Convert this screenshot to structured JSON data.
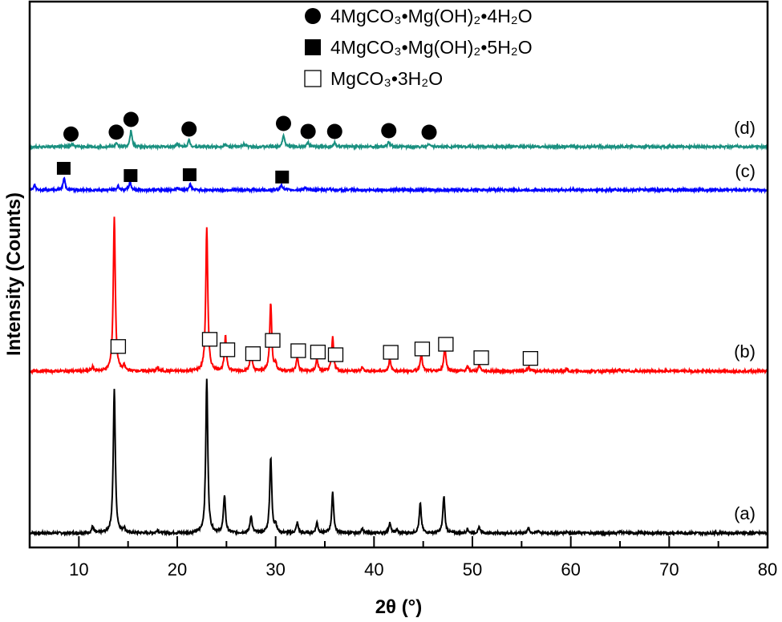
{
  "chart_data": {
    "type": "line",
    "title": "",
    "xlabel": "2θ (°)",
    "ylabel": "Intensity (Counts)",
    "xlim": [
      5,
      80
    ],
    "ylim": [
      0,
      681
    ],
    "xticks": [
      10,
      20,
      30,
      40,
      50,
      60,
      70,
      80
    ],
    "minor_xticks": [
      15,
      25,
      35,
      45,
      55,
      65,
      75
    ],
    "yticks_labeled": false,
    "grid": false,
    "legend_position": "top-right",
    "legend": [
      {
        "label": "4MgCO₃•Mg(OH)₂•4H₂O",
        "marker": "filled-circle"
      },
      {
        "label": "4MgCO₃•Mg(OH)₂•5H₂O",
        "marker": "filled-square"
      },
      {
        "label": "MgCO₃•3H₂O",
        "marker": "open-square"
      }
    ],
    "series": [
      {
        "label": "(a)",
        "color": "#000000",
        "baseline": 18,
        "peaks": [
          [
            11.4,
            8
          ],
          [
            13.6,
            180
          ],
          [
            14.6,
            6
          ],
          [
            18,
            4
          ],
          [
            23.0,
            193
          ],
          [
            24.8,
            47
          ],
          [
            27.5,
            22
          ],
          [
            29.5,
            95
          ],
          [
            30.0,
            10
          ],
          [
            32.2,
            13
          ],
          [
            34.2,
            13
          ],
          [
            35.8,
            50
          ],
          [
            38.8,
            6
          ],
          [
            41.6,
            13
          ],
          [
            42.3,
            4
          ],
          [
            44.7,
            37
          ],
          [
            47.1,
            46
          ],
          [
            49.5,
            5
          ],
          [
            50.7,
            7
          ],
          [
            55.7,
            6
          ],
          [
            56.7,
            3
          ],
          [
            59.6,
            2
          ],
          [
            65,
            2
          ]
        ],
        "markers": []
      },
      {
        "label": "(b)",
        "color": "#ff0000",
        "baseline": 220,
        "peaks": [
          [
            11.4,
            5
          ],
          [
            13.6,
            193
          ],
          [
            14.6,
            6
          ],
          [
            18,
            4
          ],
          [
            23.0,
            180
          ],
          [
            24.9,
            43
          ],
          [
            27.5,
            25
          ],
          [
            29.5,
            85
          ],
          [
            30.0,
            8
          ],
          [
            32.2,
            18
          ],
          [
            34.2,
            15
          ],
          [
            35.8,
            42
          ],
          [
            38.8,
            5
          ],
          [
            41.6,
            15
          ],
          [
            44.8,
            22
          ],
          [
            47.2,
            32
          ],
          [
            49.5,
            5
          ],
          [
            50.7,
            8
          ],
          [
            55.7,
            5
          ],
          [
            59.6,
            2
          ],
          [
            65,
            2
          ]
        ],
        "markers": [
          {
            "marker": "open-square",
            "x": [
              14.0,
              23.3,
              25.1,
              27.7,
              29.7,
              32.3,
              34.3,
              36.1,
              41.7,
              44.9,
              47.3,
              50.9,
              55.9
            ]
          }
        ]
      },
      {
        "label": "(c)",
        "color": "#0000ff",
        "baseline": 446,
        "peaks": [
          [
            5.5,
            6
          ],
          [
            8.5,
            15
          ],
          [
            14.0,
            5
          ],
          [
            15.2,
            10
          ],
          [
            20.0,
            3
          ],
          [
            21.3,
            7
          ],
          [
            30.6,
            7
          ],
          [
            33.0,
            3
          ],
          [
            35.5,
            2
          ]
        ],
        "markers": [
          {
            "marker": "filled-square",
            "x": [
              8.5,
              15.3,
              21.3,
              30.7
            ]
          }
        ]
      },
      {
        "label": "(d)",
        "color": "#1a9080",
        "baseline": 500,
        "peaks": [
          [
            9.3,
            3
          ],
          [
            13.8,
            4
          ],
          [
            15.3,
            20
          ],
          [
            20.0,
            4
          ],
          [
            21.2,
            8
          ],
          [
            24.8,
            3
          ],
          [
            26.8,
            4
          ],
          [
            30.8,
            15
          ],
          [
            33.3,
            5
          ],
          [
            36.0,
            5
          ],
          [
            41.5,
            6
          ],
          [
            45.6,
            4
          ]
        ],
        "markers": [
          {
            "marker": "filled-circle",
            "x": [
              9.2,
              13.8,
              15.3,
              21.2,
              30.8,
              33.3,
              36.0,
              41.5,
              45.6
            ]
          }
        ]
      }
    ]
  }
}
